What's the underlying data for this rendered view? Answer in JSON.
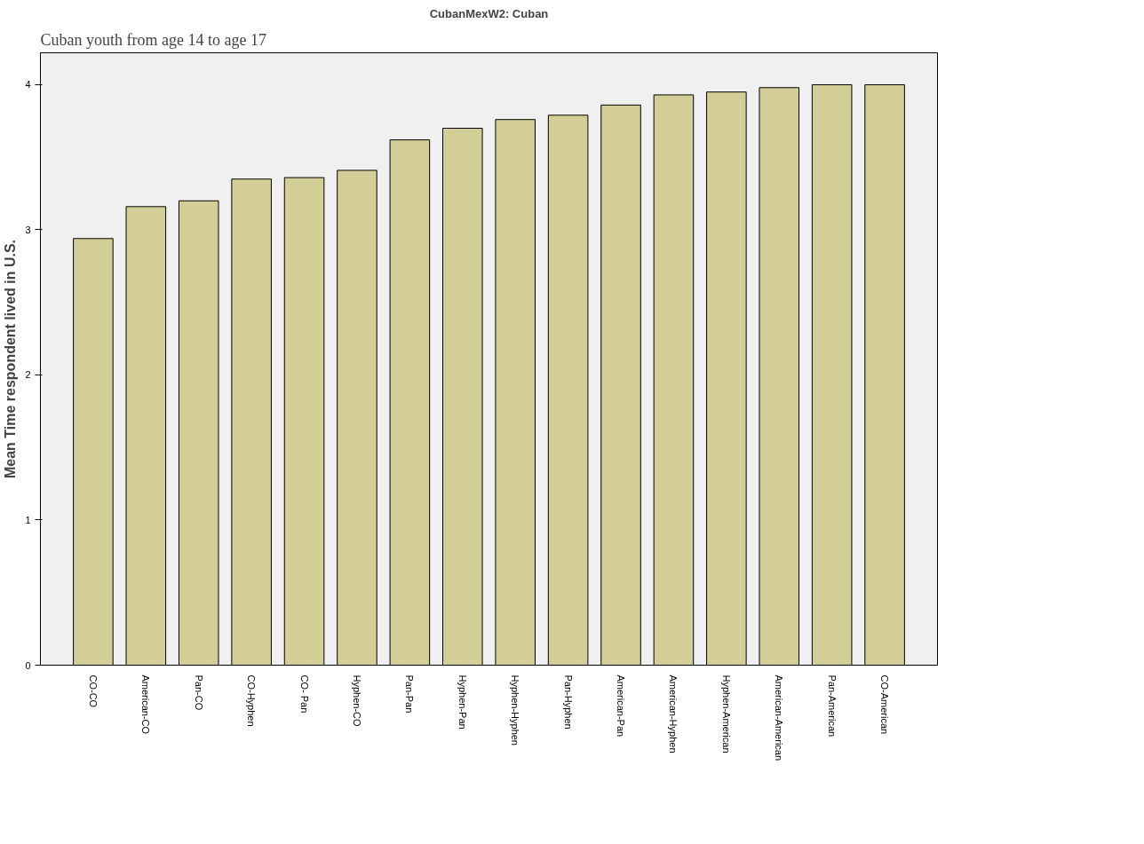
{
  "chart_data": {
    "type": "bar",
    "title": "CubanMexW2: Cuban",
    "ylabel": "Mean Time respondent lived in U.S.",
    "annotations": [
      "Cuban youth from age 14 to age 17"
    ],
    "categories": [
      "CO-CO",
      "American-CO",
      "Pan-CO",
      "CO-Hyphen",
      "CO- Pan",
      "Hyphen-CO",
      "Pan-Pan",
      "Hyphen-Pan",
      "Hyphen-Hyphen",
      "Pan-Hyphen",
      "American-Pan",
      "American-Hyphen",
      "Hyphen-American",
      "American-American",
      "Pan-American",
      "CO-American"
    ],
    "values": [
      2.94,
      3.16,
      3.2,
      3.35,
      3.36,
      3.41,
      3.62,
      3.7,
      3.76,
      3.79,
      3.86,
      3.93,
      3.95,
      3.98,
      4.0,
      4.0
    ],
    "color": "#d3ce97",
    "ylim": [
      0,
      4.22
    ],
    "yticks": [
      0,
      1,
      2,
      3,
      4
    ],
    "grid": false
  }
}
